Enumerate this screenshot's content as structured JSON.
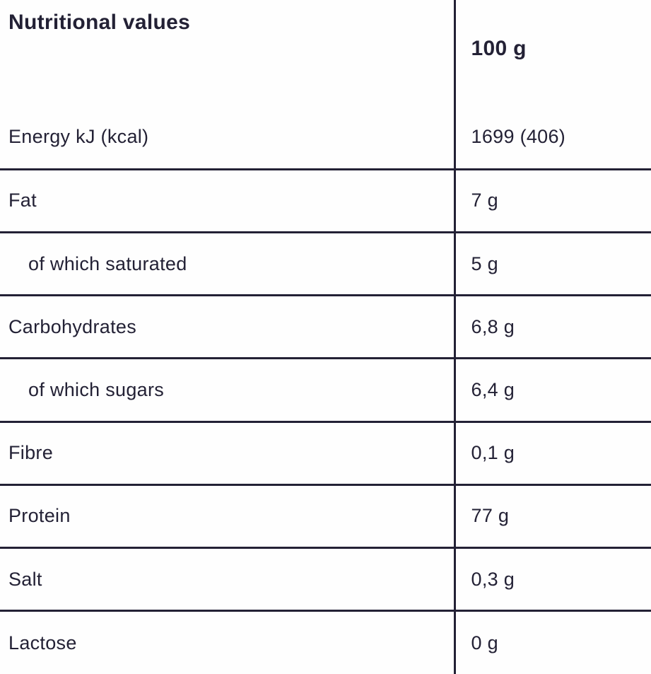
{
  "colors": {
    "text": "#232135",
    "line": "#232135",
    "background": "#fefefe"
  },
  "table": {
    "header": {
      "label": "Nutritional values",
      "unit": "100 g"
    },
    "rows": [
      {
        "label": "Energy kJ (kcal)",
        "value": "1699 (406)",
        "indented": false
      },
      {
        "label": "Fat",
        "value": "7 g",
        "indented": false
      },
      {
        "label": "of which saturated",
        "value": "5 g",
        "indented": true
      },
      {
        "label": "Carbohydrates",
        "value": "6,8 g",
        "indented": false
      },
      {
        "label": "of which sugars",
        "value": "6,4 g",
        "indented": true
      },
      {
        "label": "Fibre",
        "value": "0,1 g",
        "indented": false
      },
      {
        "label": "Protein",
        "value": "77 g",
        "indented": false
      },
      {
        "label": "Salt",
        "value": "0,3 g",
        "indented": false
      },
      {
        "label": "Lactose",
        "value": "0 g",
        "indented": false
      }
    ]
  },
  "chart_data": {
    "type": "table",
    "title": "Nutritional values",
    "columns": [
      "Nutritional values",
      "100 g"
    ],
    "rows": [
      [
        "Energy kJ (kcal)",
        "1699 (406)"
      ],
      [
        "Fat",
        "7 g"
      ],
      [
        "of which saturated",
        "5 g"
      ],
      [
        "Carbohydrates",
        "6,8 g"
      ],
      [
        "of which sugars",
        "6,4 g"
      ],
      [
        "Fibre",
        "0,1 g"
      ],
      [
        "Protein",
        "77 g"
      ],
      [
        "Salt",
        "0,3 g"
      ],
      [
        "Lactose",
        "0 g"
      ]
    ],
    "notes": "Per-100g nutrition table; decimal commas; no outer border; dark navy rules"
  }
}
